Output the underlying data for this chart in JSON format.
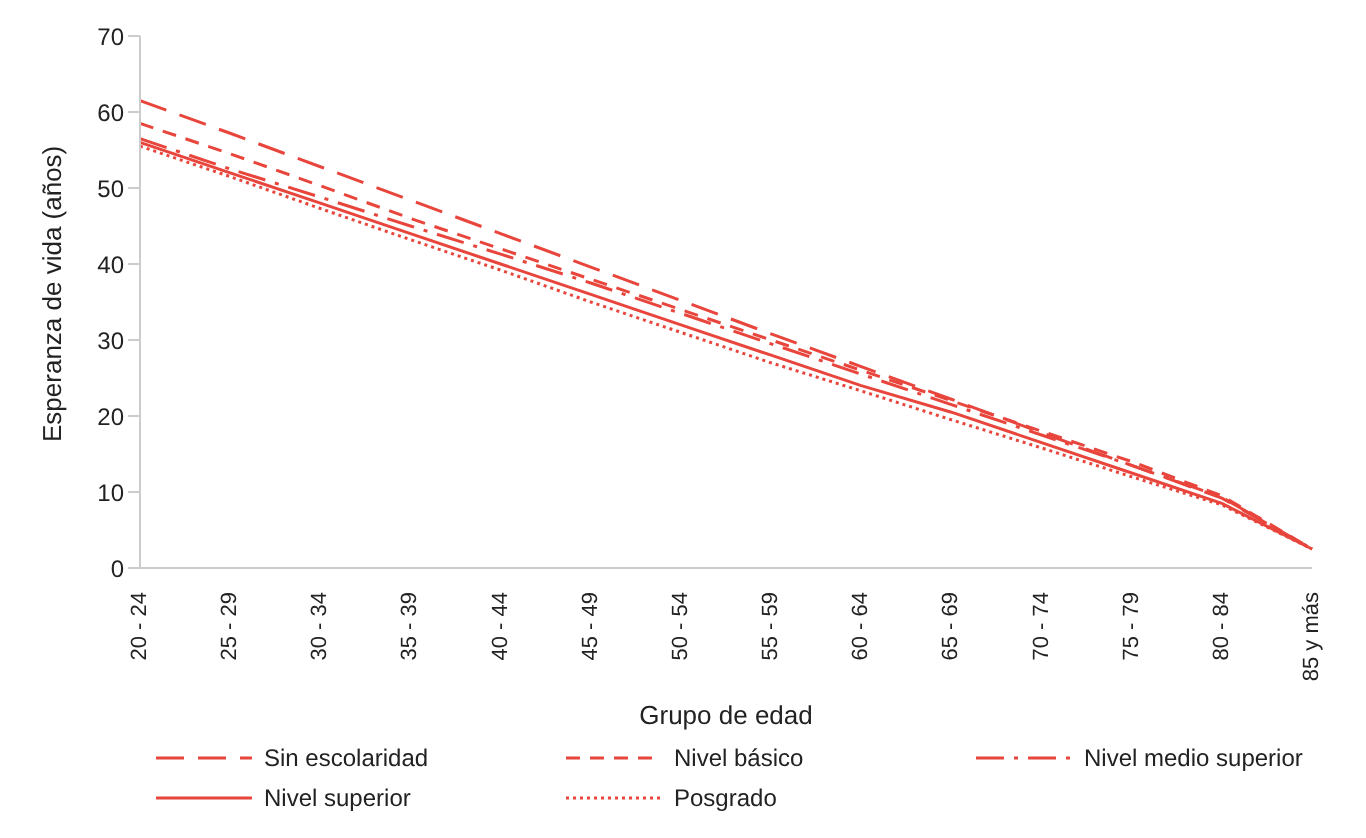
{
  "chart_data": {
    "type": "line",
    "xlabel": "Grupo de edad",
    "ylabel": "Esperanza de vida (años)",
    "categories": [
      "20 - 24",
      "25 - 29",
      "30 - 34",
      "35 - 39",
      "40 - 44",
      "45 - 49",
      "50 - 54",
      "55 - 59",
      "60 - 64",
      "65 - 69",
      "70 - 74",
      "75 - 79",
      "80 - 84",
      "85 y más"
    ],
    "series": [
      {
        "name": "Sin escolaridad",
        "color": "#e8453c",
        "line_style": "dashed",
        "values": [
          61.5,
          57.2,
          52.8,
          48.4,
          44,
          39.6,
          35.2,
          30.8,
          26.5,
          22.2,
          17.8,
          13.5,
          9.2,
          2.5
        ]
      },
      {
        "name": "Nivel básico",
        "color": "#e8453c",
        "line_style": "dashed",
        "values": [
          58.5,
          54.5,
          50.3,
          46,
          42,
          38,
          34,
          30,
          26,
          22,
          18,
          14,
          9.5,
          2.5
        ]
      },
      {
        "name": "Nivel medio superior",
        "color": "#e8453c",
        "line_style": "dashed",
        "values": [
          56.5,
          52.5,
          48.8,
          45,
          41.3,
          37.5,
          33.5,
          29.5,
          25.5,
          21.5,
          17.5,
          13.5,
          9.3,
          2.5
        ]
      },
      {
        "name": "Nivel superior",
        "color": "#e8453c",
        "line_style": "solid",
        "values": [
          56,
          52,
          48,
          44,
          40,
          36,
          32,
          28,
          24,
          20.5,
          16.5,
          12.5,
          8.5,
          2.5
        ]
      },
      {
        "name": "Posgrado",
        "color": "#e8453c",
        "line_style": "dotted",
        "values": [
          55.5,
          51.5,
          47.3,
          43.2,
          39.2,
          35,
          31,
          27,
          23.3,
          19.5,
          15.8,
          12,
          8.3,
          2.5
        ]
      }
    ],
    "ylim": [
      0,
      70
    ],
    "yticks": [
      0,
      10,
      20,
      30,
      40,
      50,
      60,
      70
    ],
    "legend": "bottom",
    "marker": "none"
  }
}
